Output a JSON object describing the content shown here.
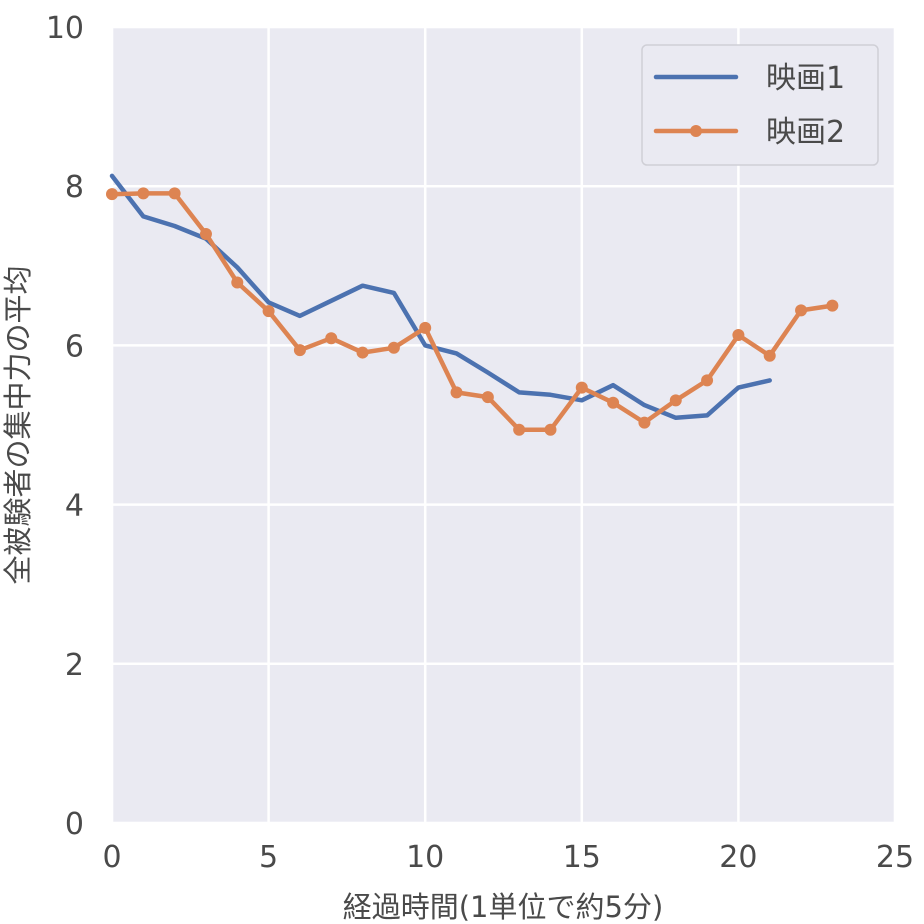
{
  "chart_data": {
    "type": "line",
    "xlabel": "経過時間(1単位で約5分)",
    "ylabel": "全被験者の集中力の平均",
    "xlim": [
      0,
      25
    ],
    "ylim": [
      0,
      10
    ],
    "x_ticks": [
      "0",
      "5",
      "10",
      "15",
      "20",
      "25"
    ],
    "y_ticks": [
      "0",
      "2",
      "4",
      "6",
      "8",
      "10"
    ],
    "grid": true,
    "legend_position": "top-right",
    "series": [
      {
        "name": "映画1",
        "color": "#4c72b0",
        "marker": false,
        "x": [
          0,
          1,
          2,
          3,
          4,
          5,
          6,
          7,
          8,
          9,
          10,
          11,
          12,
          13,
          14,
          15,
          16,
          17,
          18,
          19,
          20,
          21
        ],
        "y": [
          8.13,
          7.62,
          7.5,
          7.34,
          6.98,
          6.54,
          6.37,
          6.56,
          6.75,
          6.66,
          6.0,
          5.9,
          5.66,
          5.41,
          5.38,
          5.31,
          5.5,
          5.25,
          5.09,
          5.12,
          5.47,
          5.56
        ]
      },
      {
        "name": "映画2",
        "color": "#dd8452",
        "marker": true,
        "x": [
          0,
          1,
          2,
          3,
          4,
          5,
          6,
          7,
          8,
          9,
          10,
          11,
          12,
          13,
          14,
          15,
          16,
          17,
          18,
          19,
          20,
          21,
          22,
          23
        ],
        "y": [
          7.9,
          7.91,
          7.91,
          7.4,
          6.79,
          6.43,
          5.94,
          6.09,
          5.91,
          5.97,
          6.22,
          5.41,
          5.35,
          4.94,
          4.94,
          5.47,
          5.28,
          5.03,
          5.31,
          5.56,
          6.13,
          5.87,
          6.44,
          6.5
        ]
      }
    ]
  }
}
